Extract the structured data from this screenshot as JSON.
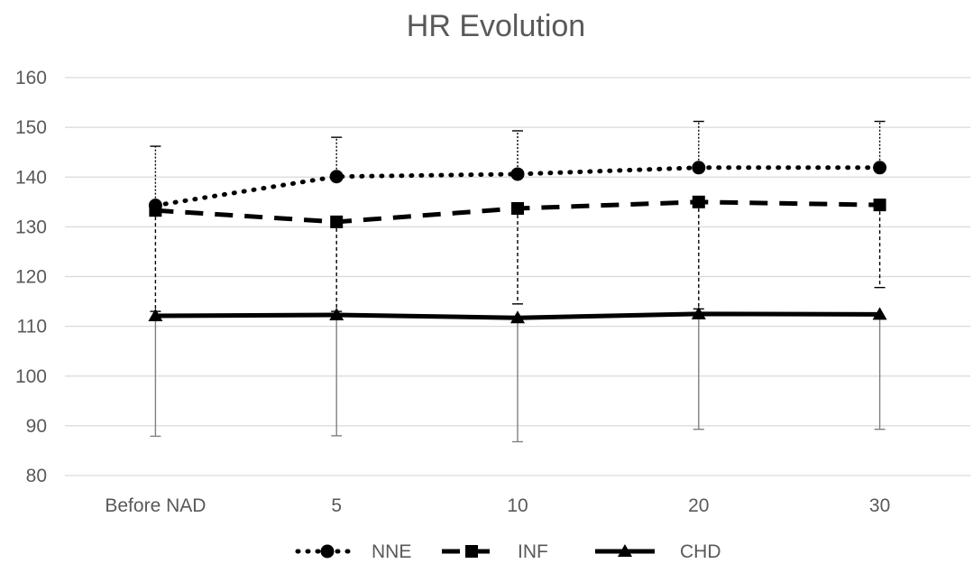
{
  "chart_data": {
    "type": "line",
    "title": "HR Evolution",
    "xlabel": "",
    "ylabel": "",
    "categories": [
      "Before NAD",
      "5",
      "10",
      "20",
      "30"
    ],
    "ylim": [
      80,
      160
    ],
    "yticks": [
      80,
      90,
      100,
      110,
      120,
      130,
      140,
      150,
      160
    ],
    "grid": "horizontal",
    "legend_position": "bottom",
    "series": [
      {
        "name": "NNE",
        "marker": "circle",
        "line_style": "dotted",
        "color": "#000000",
        "values": [
          134.3,
          140.1,
          140.6,
          141.9,
          141.9
        ],
        "error_upper": [
          146.2,
          148.0,
          149.3,
          151.2,
          151.2
        ],
        "error_lower": []
      },
      {
        "name": "INF",
        "marker": "square",
        "line_style": "dashed",
        "color": "#000000",
        "values": [
          133.3,
          131.0,
          133.7,
          135.0,
          134.4
        ],
        "error_upper": [],
        "error_lower": [
          113.0,
          113.0,
          114.5,
          113.5,
          117.8
        ]
      },
      {
        "name": "CHD",
        "marker": "triangle",
        "line_style": "solid",
        "color": "#000000",
        "values": [
          112.1,
          112.3,
          111.7,
          112.5,
          112.4
        ],
        "error_upper": [],
        "error_lower": [
          87.9,
          88.0,
          86.8,
          89.3,
          89.3
        ],
        "error_color": "#808080"
      }
    ]
  }
}
